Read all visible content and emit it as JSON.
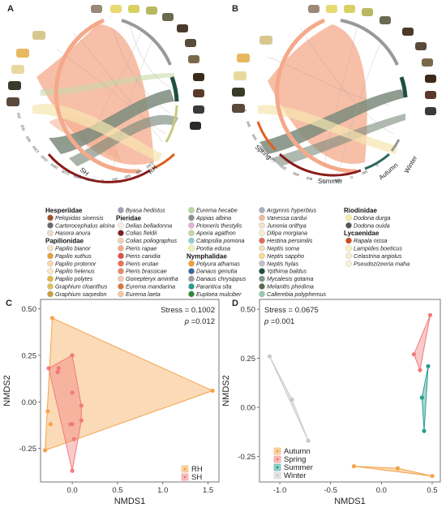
{
  "panels": {
    "A": {
      "letter": "A",
      "groups": [
        "SH",
        "RH"
      ],
      "ring_numbers": [
        "0",
        "300",
        "600",
        "900",
        "1200",
        "1500",
        "1800",
        "2100",
        "2400",
        "2700",
        "0",
        "300",
        "600",
        "900",
        "1200"
      ]
    },
    "B": {
      "letter": "B",
      "groups": [
        "Spring",
        "Summer",
        "Autumn",
        "Winter"
      ],
      "ring_numbers": [
        "0",
        "300",
        "600",
        "900",
        "1200",
        "300",
        "600",
        "900",
        "0",
        "300",
        "0",
        "300",
        "0"
      ]
    },
    "C": {
      "letter": "C"
    },
    "D": {
      "letter": "D"
    }
  },
  "legend": {
    "columns": [
      [
        {
          "family": "Hesperiidae"
        },
        {
          "species": "Pelopidas sinensis",
          "color": "#a0522d"
        },
        {
          "species": "Carterocephalus alcina",
          "color": "#6b6b6b"
        },
        {
          "species": "Hasora anura",
          "color": "#e8dcc8"
        },
        {
          "family": "Papilionidae"
        },
        {
          "species": "Papilio bianor",
          "color": "#f5e6c8"
        },
        {
          "species": "Papilio xuthus",
          "color": "#e8a33d"
        },
        {
          "species": "Papilio protenor",
          "color": "#f7d9a8"
        },
        {
          "species": "Papilio helenus",
          "color": "#fbe7c6"
        },
        {
          "species": "Papilio polytes",
          "color": "#e5b84b"
        },
        {
          "species": "Graphium cloanthus",
          "color": "#e0c060"
        },
        {
          "species": "Graphium sarpedon",
          "color": "#c8a040"
        }
      ],
      [
        {
          "species": "Byasa hedistus",
          "color": "#9f9fb8"
        },
        {
          "family": "Pieridae"
        },
        {
          "species": "Delias belladonna",
          "color": "#f6efe0"
        },
        {
          "species": "Colias fieldii",
          "color": "#7a1f1f"
        },
        {
          "species": "Colias poliographus",
          "color": "#f0d0b0"
        },
        {
          "species": "Pieris rapae",
          "color": "#f4a98a"
        },
        {
          "species": "Pieris canidia",
          "color": "#e0504a"
        },
        {
          "species": "Pieris erutae",
          "color": "#f07050"
        },
        {
          "species": "Pieris brassicae",
          "color": "#e88a6a"
        },
        {
          "species": "Gonepteryx amintha",
          "color": "#f2cdb8"
        },
        {
          "species": "Eurema mandarina",
          "color": "#d77a3a"
        },
        {
          "species": "Eurema laeta",
          "color": "#f7c8a0"
        }
      ],
      [
        {
          "species": "Eurema hecabe",
          "color": "#b8d898"
        },
        {
          "species": "Appias albina",
          "color": "#909090"
        },
        {
          "species": "Prioneris thestylis",
          "color": "#e6b3d6"
        },
        {
          "species": "Aporia agathon",
          "color": "#c7d7a8"
        },
        {
          "species": "Catopsilia pomona",
          "color": "#8fd0d0"
        },
        {
          "species": "Pontia edusa",
          "color": "#f5f0b0"
        },
        {
          "family": "Nymphalidae"
        },
        {
          "species": "Polyura athamas",
          "color": "#f2a030"
        },
        {
          "species": "Danaus genutia",
          "color": "#3d6a9a"
        },
        {
          "species": "Danaus chrysippus",
          "color": "#a0a0a0"
        },
        {
          "species": "Parantica sita",
          "color": "#2a9d8f"
        },
        {
          "species": "Euploea mulciber",
          "color": "#2e8b2e"
        }
      ],
      [
        {
          "species": "Argynnis hyperbius",
          "color": "#a8b0c0"
        },
        {
          "species": "Vanessa cardui",
          "color": "#f2b8a0"
        },
        {
          "species": "Junonia orithya",
          "color": "#f6e0c8"
        },
        {
          "species": "Dilipa morgiana",
          "color": "#f7efd0"
        },
        {
          "species": "Hestina persimilis",
          "color": "#e07060"
        },
        {
          "species": "Neptis soma",
          "color": "#f0e0c0"
        },
        {
          "species": "Neptis sappho",
          "color": "#f8d890"
        },
        {
          "species": "Neptis hylas",
          "color": "#c0c0c8"
        },
        {
          "species": "Ypthima baldus",
          "color": "#1f4f3f"
        },
        {
          "species": "Mycalesis gotama",
          "color": "#7a9a8a"
        },
        {
          "species": "Melanitis phedima",
          "color": "#5a6a50"
        },
        {
          "species": "Callerebia polyphemus",
          "color": "#98c8b0"
        }
      ],
      [
        {
          "family": "Riodinidae"
        },
        {
          "species": "Dodona durga",
          "color": "#f4f0a0"
        },
        {
          "species": "Dodona ouida",
          "color": "#555555"
        },
        {
          "family": "Lycaenidae"
        },
        {
          "species": "Rapala nissa",
          "color": "#d04a20"
        },
        {
          "species": "Lampides boeticus",
          "color": "#f8f4c0"
        },
        {
          "species": "Celastrina argiolus",
          "color": "#f6ecd0"
        },
        {
          "species": "Pseudozizeeria maha",
          "color": "#f8f0d8"
        }
      ]
    ]
  },
  "chart_data": [
    {
      "type": "scatter",
      "panel": "C",
      "xlabel": "NMDS1",
      "ylabel": "NMDS2",
      "xlim": [
        -0.35,
        1.62
      ],
      "ylim": [
        -0.43,
        0.55
      ],
      "xticks": [
        "0.0",
        "0.5",
        "1.0",
        "1.5"
      ],
      "yticks": [
        "0.50",
        "0.25",
        "0.00",
        "-0.25"
      ],
      "xtick_values": [
        0.0,
        0.5,
        1.0,
        1.5
      ],
      "ytick_values": [
        0.5,
        0.25,
        0.0,
        -0.25
      ],
      "stress_text": "Stress = 0.1002",
      "p_label": "p",
      "p_value_text": " =0.012",
      "legend_position": "bottom-right",
      "series": [
        {
          "name": "RH",
          "color": "#f5a34a",
          "points": [
            [
              -0.22,
              0.45
            ],
            [
              -0.3,
              -0.26
            ],
            [
              -0.27,
              -0.05
            ],
            [
              -0.24,
              -0.12
            ],
            [
              1.55,
              0.06
            ]
          ]
        },
        {
          "name": "SH",
          "color": "#f07a7a",
          "points": [
            [
              -0.15,
              0.18
            ],
            [
              -0.16,
              0.16
            ],
            [
              -0.26,
              0.18
            ],
            [
              0.0,
              0.05
            ],
            [
              0.0,
              0.25
            ],
            [
              -0.02,
              -0.12
            ],
            [
              0.0,
              -0.12
            ],
            [
              0.02,
              -0.2
            ],
            [
              0.1,
              -0.02
            ],
            [
              0.1,
              -0.1
            ],
            [
              0.0,
              -0.37
            ]
          ]
        }
      ]
    },
    {
      "type": "scatter",
      "panel": "D",
      "xlabel": "NMDS1",
      "ylabel": "NMDS2",
      "xlim": [
        -1.2,
        0.58
      ],
      "ylim": [
        -0.38,
        0.55
      ],
      "xticks": [
        "-1.0",
        "-0.5",
        "0.0",
        "0.5"
      ],
      "yticks": [
        "0.50",
        "0.25",
        "0.00",
        "-0.25"
      ],
      "xtick_values": [
        -1.0,
        -0.5,
        0.0,
        0.5
      ],
      "ytick_values": [
        0.5,
        0.25,
        0.0,
        -0.25
      ],
      "stress_text": "Stress = 0.0675",
      "p_label": "p",
      "p_value_text": " =0.001",
      "legend_position": "bottom-left",
      "series": [
        {
          "name": "Autumn",
          "color": "#f5a34a",
          "points": [
            [
              -0.27,
              -0.3
            ],
            [
              0.16,
              -0.31
            ],
            [
              0.5,
              -0.35
            ]
          ]
        },
        {
          "name": "Spring",
          "color": "#f07a7a",
          "points": [
            [
              0.32,
              0.27
            ],
            [
              0.48,
              0.47
            ],
            [
              0.38,
              0.19
            ]
          ]
        },
        {
          "name": "Summer",
          "color": "#2a9d8f",
          "points": [
            [
              0.4,
              0.05
            ],
            [
              0.46,
              0.21
            ],
            [
              0.42,
              -0.12
            ]
          ]
        },
        {
          "name": "Winter",
          "color": "#c8c8c8",
          "points": [
            [
              -1.1,
              0.26
            ],
            [
              -0.88,
              0.04
            ],
            [
              -0.72,
              -0.17
            ]
          ]
        }
      ]
    }
  ]
}
